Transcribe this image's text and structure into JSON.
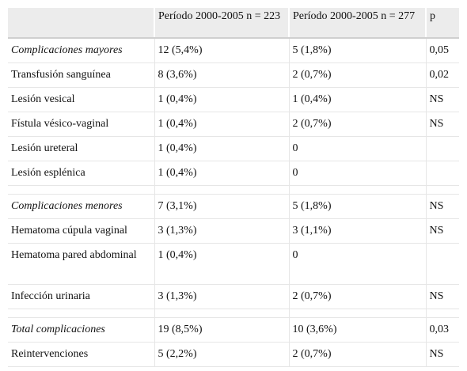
{
  "header": [
    "",
    "Período 2000-2005 n = 223",
    "Período 2000-2005 n = 277",
    "p"
  ],
  "rows": [
    {
      "kind": "group",
      "cells": [
        "Complicaciones mayores",
        "12 (5,4%)",
        "5 (1,8%)",
        "0,05"
      ]
    },
    {
      "kind": "sub",
      "cells": [
        "Transfusión sanguínea",
        "8 (3,6%)",
        "2 (0,7%)",
        "0,02"
      ]
    },
    {
      "kind": "sub",
      "cells": [
        "Lesión vesical",
        "1 (0,4%)",
        "1 (0,4%)",
        "NS"
      ]
    },
    {
      "kind": "sub",
      "cells": [
        "Fístula vésico-vaginal",
        "1 (0,4%)",
        "2 (0,7%)",
        "NS"
      ]
    },
    {
      "kind": "sub",
      "cells": [
        "Lesión ureteral",
        "1 (0,4%)",
        "0",
        ""
      ]
    },
    {
      "kind": "sub",
      "cells": [
        "Lesión esplénica",
        "1 (0,4%)",
        "0",
        ""
      ]
    },
    {
      "kind": "spacer",
      "cells": [
        "",
        "",
        "",
        ""
      ]
    },
    {
      "kind": "group",
      "cells": [
        "Complicaciones menores",
        "7 (3,1%)",
        "5 (1,8%)",
        "NS"
      ]
    },
    {
      "kind": "sub",
      "cells": [
        "Hematoma cúpula vaginal",
        "3 (1,3%)",
        "3 (1,1%)",
        "NS"
      ]
    },
    {
      "kind": "sub-tall",
      "cells": [
        "Hematoma pared abdominal",
        "1 (0,4%)",
        "0",
        ""
      ]
    },
    {
      "kind": "sub",
      "cells": [
        "Infección urinaria",
        "3 (1,3%)",
        "2 (0,7%)",
        "NS"
      ]
    },
    {
      "kind": "spacer",
      "cells": [
        "",
        "",
        "",
        ""
      ]
    },
    {
      "kind": "group",
      "cells": [
        "Total complicaciones",
        "19 (8,5%)",
        "10 (3,6%)",
        "0,03"
      ]
    },
    {
      "kind": "sub",
      "cells": [
        "Reintervenciones",
        "5 (2,2%)",
        "2 (0,7%)",
        "NS"
      ]
    }
  ]
}
